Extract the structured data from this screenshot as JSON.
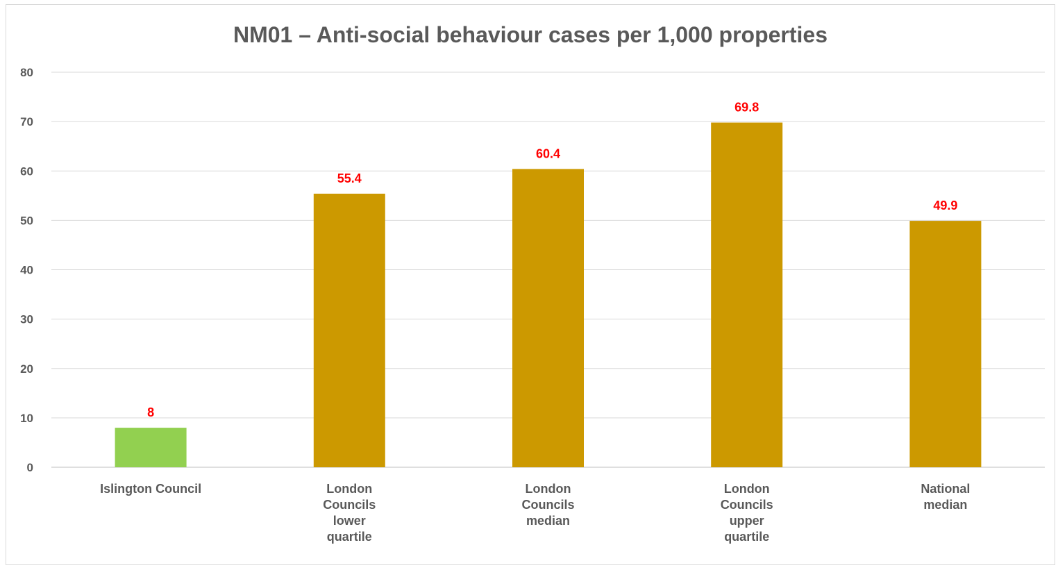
{
  "chart_data": {
    "type": "bar",
    "title": "NM01 – Anti-social behaviour cases per 1,000 properties",
    "xlabel": "",
    "ylabel": "",
    "categories": [
      [
        "Islington Council"
      ],
      [
        "London",
        "Councils",
        "lower",
        "quartile"
      ],
      [
        "London",
        "Councils",
        "median"
      ],
      [
        "London",
        "Councils",
        "upper",
        "quartile"
      ],
      [
        "National",
        "median"
      ]
    ],
    "values": [
      8,
      55.4,
      60.4,
      69.8,
      49.9
    ],
    "data_labels": [
      "8",
      "55.4",
      "60.4",
      "69.8",
      "49.9"
    ],
    "bar_colors": [
      "#92d050",
      "#cc9900",
      "#cc9900",
      "#cc9900",
      "#cc9900"
    ],
    "data_label_color": "#ff0000",
    "ylim": [
      0,
      80
    ],
    "yticks": [
      0,
      10,
      20,
      30,
      40,
      50,
      60,
      70,
      80
    ],
    "grid": true,
    "legend": "none"
  }
}
